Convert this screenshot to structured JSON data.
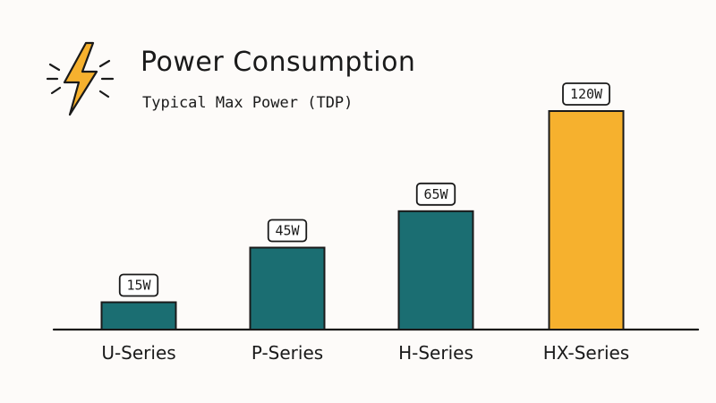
{
  "header": {
    "title": "Power Consumption",
    "subtitle": "Typical Max Power (TDP)",
    "icon": "lightning-bolt-icon"
  },
  "colors": {
    "primary_bar": "#1b6e72",
    "highlight_bar": "#f6b12e",
    "outline": "#1a1a1a",
    "background": "#fdfbf9"
  },
  "chart_data": {
    "type": "bar",
    "title": "Power Consumption",
    "subtitle": "Typical Max Power (TDP)",
    "categories": [
      "U-Series",
      "P-Series",
      "H-Series",
      "HX-Series"
    ],
    "values": [
      15,
      45,
      65,
      120
    ],
    "value_labels": [
      "15W",
      "45W",
      "65W",
      "120W"
    ],
    "unit": "W",
    "highlight_index": 3,
    "ylim": [
      0,
      120
    ],
    "grid": false,
    "legend": "none",
    "xlabel": "",
    "ylabel": ""
  }
}
